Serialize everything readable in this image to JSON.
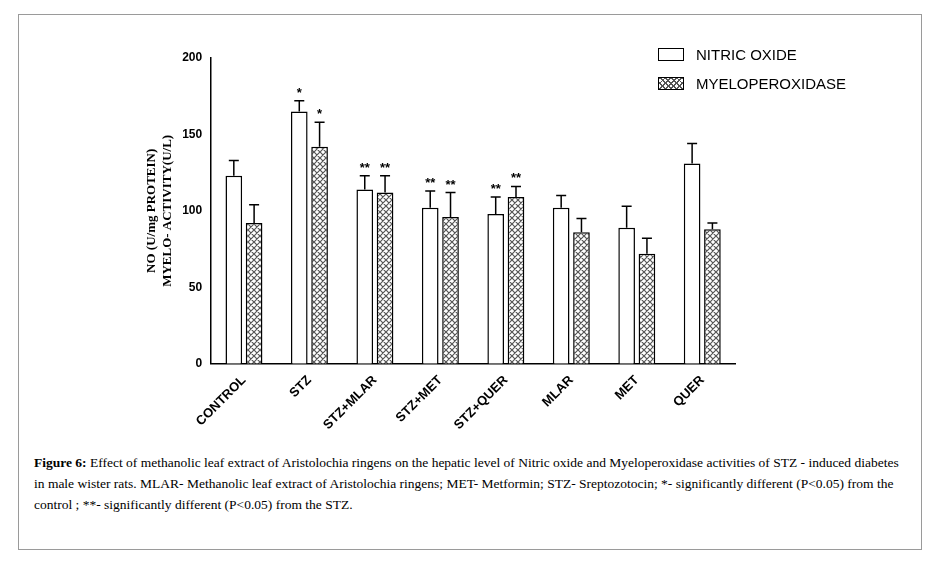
{
  "chart_data": {
    "type": "bar",
    "figure_label": "Figure 6:",
    "caption": "Effect of methanolic leaf extract of Aristolochia ringens on the hepatic level of Nitric oxide and Myeloperoxidase activities of STZ - induced diabetes in male wister rats. MLAR- Methanolic leaf extract of Aristolochia ringens; MET- Metformin; STZ- Sreptozotocin; *- significantly different (P<0.05) from the control ; **- significantly different (P<0.05) from the STZ.",
    "y_label": [
      "NO (U/mg PROTEIN)",
      "MYELO- ACTIVITY(U/L)"
    ],
    "categories": [
      "CONTROL",
      "STZ",
      "STZ+MLAR",
      "STZ+MET",
      "STZ+QUER",
      "MLAR",
      "MET",
      "QUER"
    ],
    "series": [
      {
        "name": "NITRIC OXIDE",
        "color": "#ffffff",
        "values": [
          123,
          165,
          114,
          102,
          98,
          102,
          89,
          131
        ],
        "errors": [
          10,
          7,
          9,
          11,
          11,
          8,
          14,
          13
        ],
        "annotations": [
          null,
          "*",
          "**",
          "**",
          "**",
          null,
          null,
          null
        ]
      },
      {
        "name": "MYELOPEROXIDASE",
        "color": "#555555",
        "marker": "hatched",
        "values": [
          92,
          142,
          112,
          96,
          109,
          86,
          72,
          88
        ],
        "errors": [
          12,
          16,
          11,
          16,
          7,
          9,
          10,
          4
        ],
        "annotations": [
          null,
          "*",
          "**",
          "**",
          "**",
          null,
          null,
          null
        ]
      }
    ],
    "ylim": [
      0,
      200
    ],
    "yticks": [
      0,
      50,
      100,
      150,
      200
    ],
    "grid": false,
    "legend": "top right"
  }
}
